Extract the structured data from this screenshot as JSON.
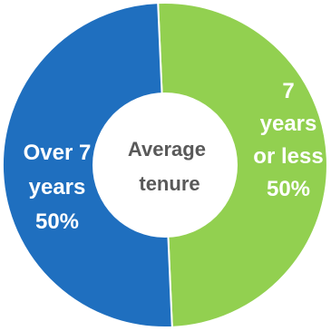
{
  "chart_data": {
    "type": "pie",
    "variant": "donut",
    "center_label": "Average tenure",
    "center_label_lines": [
      "Average",
      "tenure"
    ],
    "slices": [
      {
        "name": "7 years or less",
        "value": 50,
        "label_lines": [
          "7",
          "years",
          "or less",
          "50%"
        ],
        "color": "#92d050"
      },
      {
        "name": "Over 7 years",
        "value": 50,
        "label_lines": [
          "Over 7",
          "years",
          "50%"
        ],
        "color": "#1f6fbf"
      }
    ],
    "center_color": "#ffffff",
    "legend": "none"
  }
}
